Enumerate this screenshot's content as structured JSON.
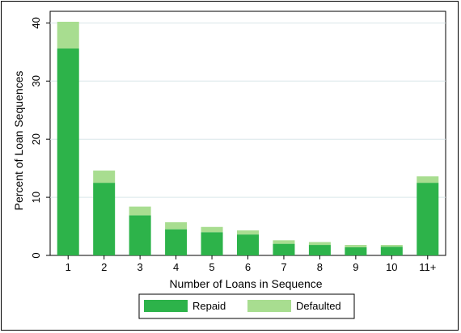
{
  "chart_data": {
    "type": "bar",
    "stacked": true,
    "categories": [
      "1",
      "2",
      "3",
      "4",
      "5",
      "6",
      "7",
      "8",
      "9",
      "10",
      "11+"
    ],
    "series": [
      {
        "name": "Repaid",
        "color": "#2db34a",
        "values": [
          35.6,
          12.5,
          6.9,
          4.5,
          4.0,
          3.6,
          2.0,
          1.8,
          1.4,
          1.5,
          12.5
        ]
      },
      {
        "name": "Defaulted",
        "color": "#a8dd90",
        "values": [
          4.6,
          2.1,
          1.5,
          1.2,
          0.9,
          0.7,
          0.6,
          0.5,
          0.4,
          0.3,
          1.1
        ]
      }
    ],
    "xlabel": "Number of Loans in Sequence",
    "ylabel": "Percent of Loan Sequences",
    "ylim": [
      0,
      42
    ],
    "yticks": [
      0,
      10,
      20,
      30,
      40
    ],
    "grid": true,
    "legend_position": "bottom"
  }
}
